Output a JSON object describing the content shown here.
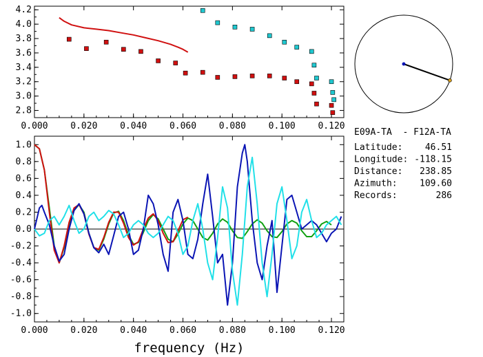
{
  "chart_data": [
    {
      "type": "scatter",
      "xlim": [
        0,
        0.125
      ],
      "ylim": [
        2.7,
        4.25
      ],
      "xticks": [
        "0.000",
        "0.020",
        "0.040",
        "0.060",
        "0.080",
        "0.100",
        "0.120"
      ],
      "xtick_values": [
        0,
        0.02,
        0.04,
        0.06,
        0.08,
        0.1,
        0.12
      ],
      "yticks": [
        "2.8",
        "3.0",
        "3.2",
        "3.4",
        "3.6",
        "3.8",
        "4.0",
        "4.2"
      ],
      "ytick_values": [
        2.8,
        3.0,
        3.2,
        3.4,
        3.6,
        3.8,
        4.0,
        4.2
      ],
      "series": [
        {
          "color": "#d01010",
          "style": "line",
          "x": [
            0.01,
            0.012,
            0.015,
            0.02,
            0.025,
            0.03,
            0.035,
            0.04,
            0.045,
            0.05,
            0.055,
            0.058,
            0.06,
            0.062
          ],
          "y": [
            4.09,
            4.04,
            3.99,
            3.95,
            3.93,
            3.91,
            3.88,
            3.85,
            3.81,
            3.77,
            3.72,
            3.68,
            3.65,
            3.61
          ]
        },
        {
          "color": "#d01010",
          "style": "marker",
          "x": [
            0.014,
            0.021,
            0.029,
            0.036,
            0.043,
            0.05,
            0.057,
            0.061,
            0.068,
            0.074,
            0.081,
            0.088,
            0.095,
            0.101,
            0.106,
            0.112,
            0.113,
            0.114,
            0.12,
            0.1205
          ],
          "y": [
            3.79,
            3.66,
            3.75,
            3.65,
            3.62,
            3.49,
            3.46,
            3.32,
            3.33,
            3.26,
            3.27,
            3.28,
            3.28,
            3.25,
            3.2,
            3.17,
            3.04,
            2.89,
            2.87,
            2.77
          ]
        },
        {
          "color": "#20c8d0",
          "style": "marker",
          "x": [
            0.068,
            0.074,
            0.081,
            0.088,
            0.095,
            0.101,
            0.106,
            0.112,
            0.113,
            0.114,
            0.12,
            0.1205,
            0.121
          ],
          "y": [
            4.19,
            4.02,
            3.96,
            3.93,
            3.84,
            3.75,
            3.68,
            3.62,
            3.43,
            3.25,
            3.2,
            3.05,
            2.95
          ]
        }
      ]
    },
    {
      "type": "line",
      "xlim": [
        0,
        0.125
      ],
      "ylim": [
        -1.1,
        1.1
      ],
      "xlabel": "frequency (Hz)",
      "xticks": [
        "0.000",
        "0.020",
        "0.040",
        "0.060",
        "0.080",
        "0.100",
        "0.120"
      ],
      "xtick_values": [
        0,
        0.02,
        0.04,
        0.06,
        0.08,
        0.1,
        0.12
      ],
      "yticks": [
        "1.0",
        "0.8",
        "0.6",
        "0.4",
        "0.2",
        "0.0",
        "-0.2",
        "-0.4",
        "-0.6",
        "-0.8",
        "-1.0"
      ],
      "ytick_values": [
        1.0,
        0.8,
        0.6,
        0.4,
        0.2,
        0.0,
        -0.2,
        -0.4,
        -0.6,
        -0.8,
        -1.0
      ],
      "series": [
        {
          "color": "#10a010",
          "x": [
            0.0,
            0.002,
            0.004,
            0.006,
            0.008,
            0.01,
            0.012,
            0.014,
            0.016,
            0.018,
            0.02,
            0.022,
            0.024,
            0.026,
            0.028,
            0.03,
            0.032,
            0.034,
            0.036,
            0.038,
            0.04,
            0.042,
            0.044,
            0.046,
            0.048,
            0.05,
            0.052,
            0.054,
            0.056,
            0.058,
            0.06,
            0.062,
            0.064,
            0.066,
            0.068,
            0.07,
            0.072,
            0.074,
            0.076,
            0.078,
            0.08,
            0.082,
            0.084,
            0.086,
            0.088,
            0.09,
            0.092,
            0.094,
            0.096,
            0.098,
            0.1,
            0.102,
            0.104,
            0.106,
            0.108,
            0.11,
            0.112,
            0.114,
            0.116,
            0.118,
            0.12
          ],
          "y": [
            1.0,
            0.95,
            0.7,
            0.25,
            -0.2,
            -0.4,
            -0.22,
            0.05,
            0.22,
            0.29,
            0.2,
            -0.05,
            -0.22,
            -0.25,
            -0.12,
            0.06,
            0.19,
            0.21,
            0.1,
            -0.07,
            -0.18,
            -0.16,
            -0.04,
            0.1,
            0.17,
            0.12,
            0.0,
            -0.12,
            -0.15,
            -0.06,
            0.06,
            0.13,
            0.1,
            0.0,
            -0.1,
            -0.13,
            -0.05,
            0.06,
            0.12,
            0.08,
            -0.02,
            -0.1,
            -0.11,
            -0.03,
            0.06,
            0.11,
            0.07,
            -0.02,
            -0.09,
            -0.1,
            -0.03,
            0.06,
            0.1,
            0.07,
            -0.02,
            -0.09,
            -0.09,
            -0.02,
            0.06,
            0.09,
            0.05
          ]
        },
        {
          "color": "#d01010",
          "x": [
            0.0,
            0.002,
            0.004,
            0.006,
            0.008,
            0.01,
            0.012,
            0.014,
            0.016,
            0.018,
            0.02,
            0.022,
            0.024,
            0.026,
            0.028,
            0.03,
            0.032,
            0.034,
            0.036,
            0.038,
            0.04,
            0.042,
            0.044,
            0.046,
            0.048,
            0.05,
            0.052,
            0.054,
            0.056,
            0.058,
            0.06,
            0.062
          ],
          "y": [
            1.0,
            0.95,
            0.7,
            0.2,
            -0.25,
            -0.4,
            -0.2,
            0.08,
            0.25,
            0.29,
            0.18,
            -0.06,
            -0.22,
            -0.24,
            -0.1,
            0.08,
            0.2,
            0.2,
            0.07,
            -0.1,
            -0.19,
            -0.15,
            0.0,
            0.13,
            0.18,
            0.1,
            -0.05,
            -0.16,
            -0.15,
            -0.02,
            0.11,
            0.14
          ]
        },
        {
          "color": "#0a14b4",
          "x": [
            0.0,
            0.002,
            0.003,
            0.004,
            0.006,
            0.008,
            0.01,
            0.012,
            0.014,
            0.016,
            0.018,
            0.02,
            0.022,
            0.024,
            0.026,
            0.028,
            0.03,
            0.032,
            0.034,
            0.036,
            0.038,
            0.04,
            0.042,
            0.044,
            0.046,
            0.048,
            0.05,
            0.052,
            0.054,
            0.056,
            0.058,
            0.06,
            0.062,
            0.064,
            0.066,
            0.068,
            0.07,
            0.072,
            0.074,
            0.076,
            0.078,
            0.08,
            0.082,
            0.084,
            0.085,
            0.086,
            0.088,
            0.09,
            0.092,
            0.094,
            0.096,
            0.098,
            0.1,
            0.102,
            0.104,
            0.106,
            0.108,
            0.11,
            0.112,
            0.114,
            0.116,
            0.118,
            0.12,
            0.122,
            0.124
          ],
          "y": [
            0.0,
            0.25,
            0.28,
            0.2,
            0.05,
            -0.2,
            -0.38,
            -0.3,
            0.0,
            0.22,
            0.3,
            0.18,
            -0.05,
            -0.22,
            -0.28,
            -0.18,
            -0.3,
            -0.08,
            0.15,
            0.2,
            0.0,
            -0.3,
            -0.25,
            0.0,
            0.4,
            0.3,
            0.05,
            -0.3,
            -0.5,
            0.2,
            0.35,
            0.1,
            -0.3,
            -0.35,
            -0.12,
            0.3,
            0.65,
            0.15,
            -0.4,
            -0.3,
            -0.9,
            -0.4,
            0.5,
            0.9,
            1.0,
            0.8,
            0.1,
            -0.4,
            -0.6,
            -0.2,
            0.1,
            -0.75,
            -0.2,
            0.35,
            0.4,
            0.2,
            0.0,
            0.05,
            0.1,
            0.05,
            -0.05,
            -0.15,
            -0.05,
            0.0,
            0.15
          ]
        },
        {
          "color": "#20e0e8",
          "x": [
            0.0,
            0.002,
            0.004,
            0.006,
            0.008,
            0.01,
            0.012,
            0.014,
            0.016,
            0.018,
            0.02,
            0.022,
            0.024,
            0.026,
            0.028,
            0.03,
            0.032,
            0.034,
            0.036,
            0.038,
            0.04,
            0.042,
            0.044,
            0.046,
            0.048,
            0.05,
            0.052,
            0.054,
            0.056,
            0.058,
            0.06,
            0.062,
            0.064,
            0.066,
            0.068,
            0.07,
            0.072,
            0.074,
            0.076,
            0.078,
            0.08,
            0.082,
            0.084,
            0.086,
            0.088,
            0.09,
            0.092,
            0.094,
            0.096,
            0.098,
            0.1,
            0.102,
            0.104,
            0.106,
            0.108,
            0.11,
            0.112,
            0.114,
            0.116,
            0.118,
            0.12,
            0.122,
            0.124
          ],
          "y": [
            0.0,
            -0.08,
            -0.05,
            0.1,
            0.15,
            0.05,
            0.15,
            0.28,
            0.1,
            -0.05,
            0.0,
            0.15,
            0.2,
            0.1,
            0.15,
            0.22,
            0.18,
            0.05,
            -0.1,
            -0.05,
            0.05,
            0.1,
            0.05,
            -0.05,
            -0.1,
            -0.05,
            0.05,
            0.15,
            0.1,
            -0.05,
            -0.3,
            -0.2,
            0.1,
            0.3,
            0.0,
            -0.4,
            -0.6,
            -0.1,
            0.5,
            0.25,
            -0.5,
            -0.9,
            -0.3,
            0.5,
            0.85,
            0.3,
            -0.4,
            -0.8,
            -0.3,
            0.3,
            0.5,
            0.1,
            -0.35,
            -0.2,
            0.2,
            0.35,
            0.1,
            -0.1,
            -0.05,
            0.05,
            0.1,
            0.15,
            0.05
          ]
        }
      ]
    }
  ],
  "station": {
    "pair": "E09A-TA  - F12A-TA",
    "rows": [
      {
        "label": "Latitude:",
        "value": "46.51"
      },
      {
        "label": "Longitude:",
        "value": "-118.15"
      },
      {
        "label": "Distance:",
        "value": "238.85"
      },
      {
        "label": "Azimuth:",
        "value": "109.60"
      },
      {
        "label": "Records:",
        "value": "286"
      }
    ]
  },
  "azimuth_deg": 109.6,
  "colors": {
    "axis": "#000000",
    "circle": "#000000",
    "needle": "#000000",
    "center_dot": "#0a14b4",
    "end_dot": "#d8a020"
  }
}
